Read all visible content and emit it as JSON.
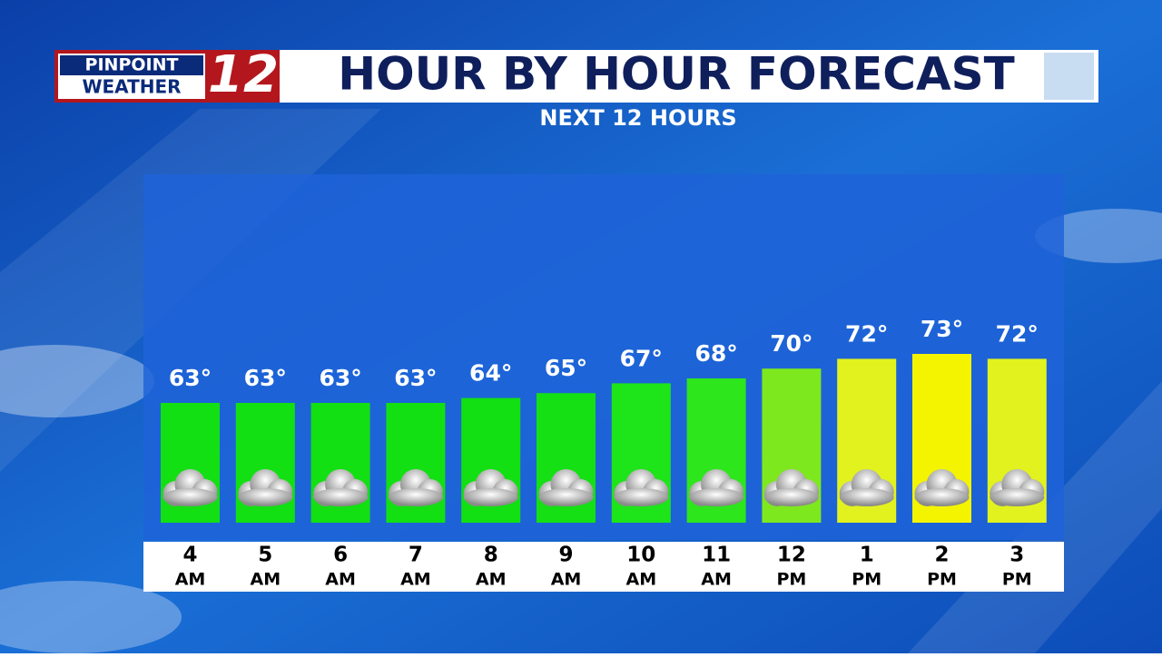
{
  "brand": {
    "line1": "PINPOINT",
    "line2": "WEATHER",
    "channel": "12"
  },
  "chart_data": {
    "type": "bar",
    "title": "HOUR BY HOUR FORECAST",
    "subtitle": "NEXT 12 HOURS",
    "categories": [
      {
        "hour": "4",
        "period": "AM"
      },
      {
        "hour": "5",
        "period": "AM"
      },
      {
        "hour": "6",
        "period": "AM"
      },
      {
        "hour": "7",
        "period": "AM"
      },
      {
        "hour": "8",
        "period": "AM"
      },
      {
        "hour": "9",
        "period": "AM"
      },
      {
        "hour": "10",
        "period": "AM"
      },
      {
        "hour": "11",
        "period": "AM"
      },
      {
        "hour": "12",
        "period": "PM"
      },
      {
        "hour": "1",
        "period": "PM"
      },
      {
        "hour": "2",
        "period": "PM"
      },
      {
        "hour": "3",
        "period": "PM"
      }
    ],
    "values": [
      63,
      63,
      63,
      63,
      64,
      65,
      67,
      68,
      70,
      72,
      73,
      72
    ],
    "value_labels": [
      "63°",
      "63°",
      "63°",
      "63°",
      "64°",
      "65°",
      "67°",
      "68°",
      "70°",
      "72°",
      "73°",
      "72°"
    ],
    "colors": [
      "#12e012",
      "#12e012",
      "#12e012",
      "#12e012",
      "#12e012",
      "#14e014",
      "#1ee41a",
      "#2ee61c",
      "#7ee81e",
      "#e2f21e",
      "#f4f400",
      "#e2f21e"
    ]
  }
}
